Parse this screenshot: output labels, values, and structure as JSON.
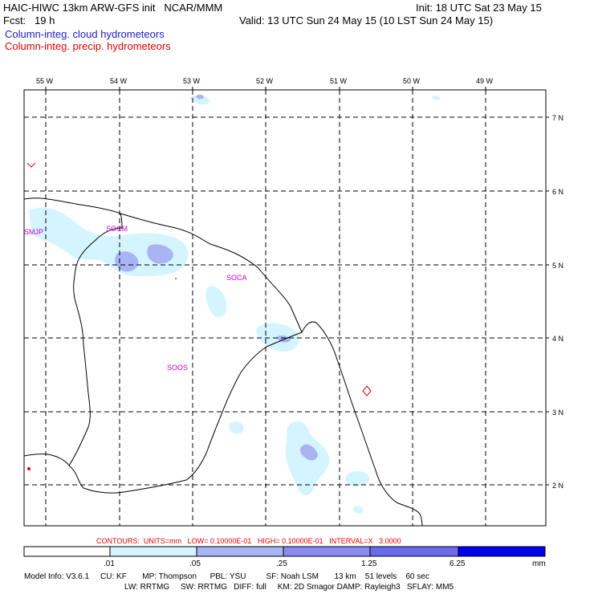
{
  "header": {
    "title_left": "HAIC-HIWC 13km ARW-GFS init   NCAR/MMM",
    "forecast": "Fcst:   19 h",
    "init": "Init: 18 UTC Sat 23 May 15",
    "valid": "Valid: 13 UTC Sun 24 May 15 (10 LST Sun 24 May 15)",
    "legend_cloud": "Column-integ. cloud hydrometeors",
    "legend_precip": "Column-integ. precip. hydrometeors",
    "legend_cloud_color": "#1a1acc",
    "legend_precip_color": "#e00000"
  },
  "map": {
    "lon_labels": [
      "55 W",
      "54 W",
      "53 W",
      "52 W",
      "51 W",
      "50 W",
      "49 W"
    ],
    "lat_labels": [
      "7 N",
      "6 N",
      "5 N",
      "4 N",
      "3 N",
      "2 N"
    ],
    "station_labels": [
      "SMJP",
      "SOCM",
      "SOCA",
      "SOOS"
    ],
    "station_color": "#cc00cc",
    "marker_color": "#e00000"
  },
  "contours_line": "CONTOURS:  UNITS=mm   LOW= 0.10000E-01   HIGH= 0.10000E-01   INTERVAL=X   3.0000",
  "colorbar": {
    "labels": [
      ".01",
      ".05",
      ".25",
      "1.25",
      "6.25"
    ],
    "units": "mm",
    "colors": [
      "#ffffff",
      "#d4f4ff",
      "#a8b4f4",
      "#6a6aee",
      "#0000ee"
    ]
  },
  "model_info": {
    "line1": "Model Info: V3.6.1     CU: KF       MP: Thompson      PBL: YSU         SF: Noah LSM       13 km    51 levels    60 sec",
    "line2": "LW: RRTMG     SW: RRTMG   DIFF: full     KM: 2D Smagor DAMP: Rayleigh3   SFLAY: MM5"
  }
}
